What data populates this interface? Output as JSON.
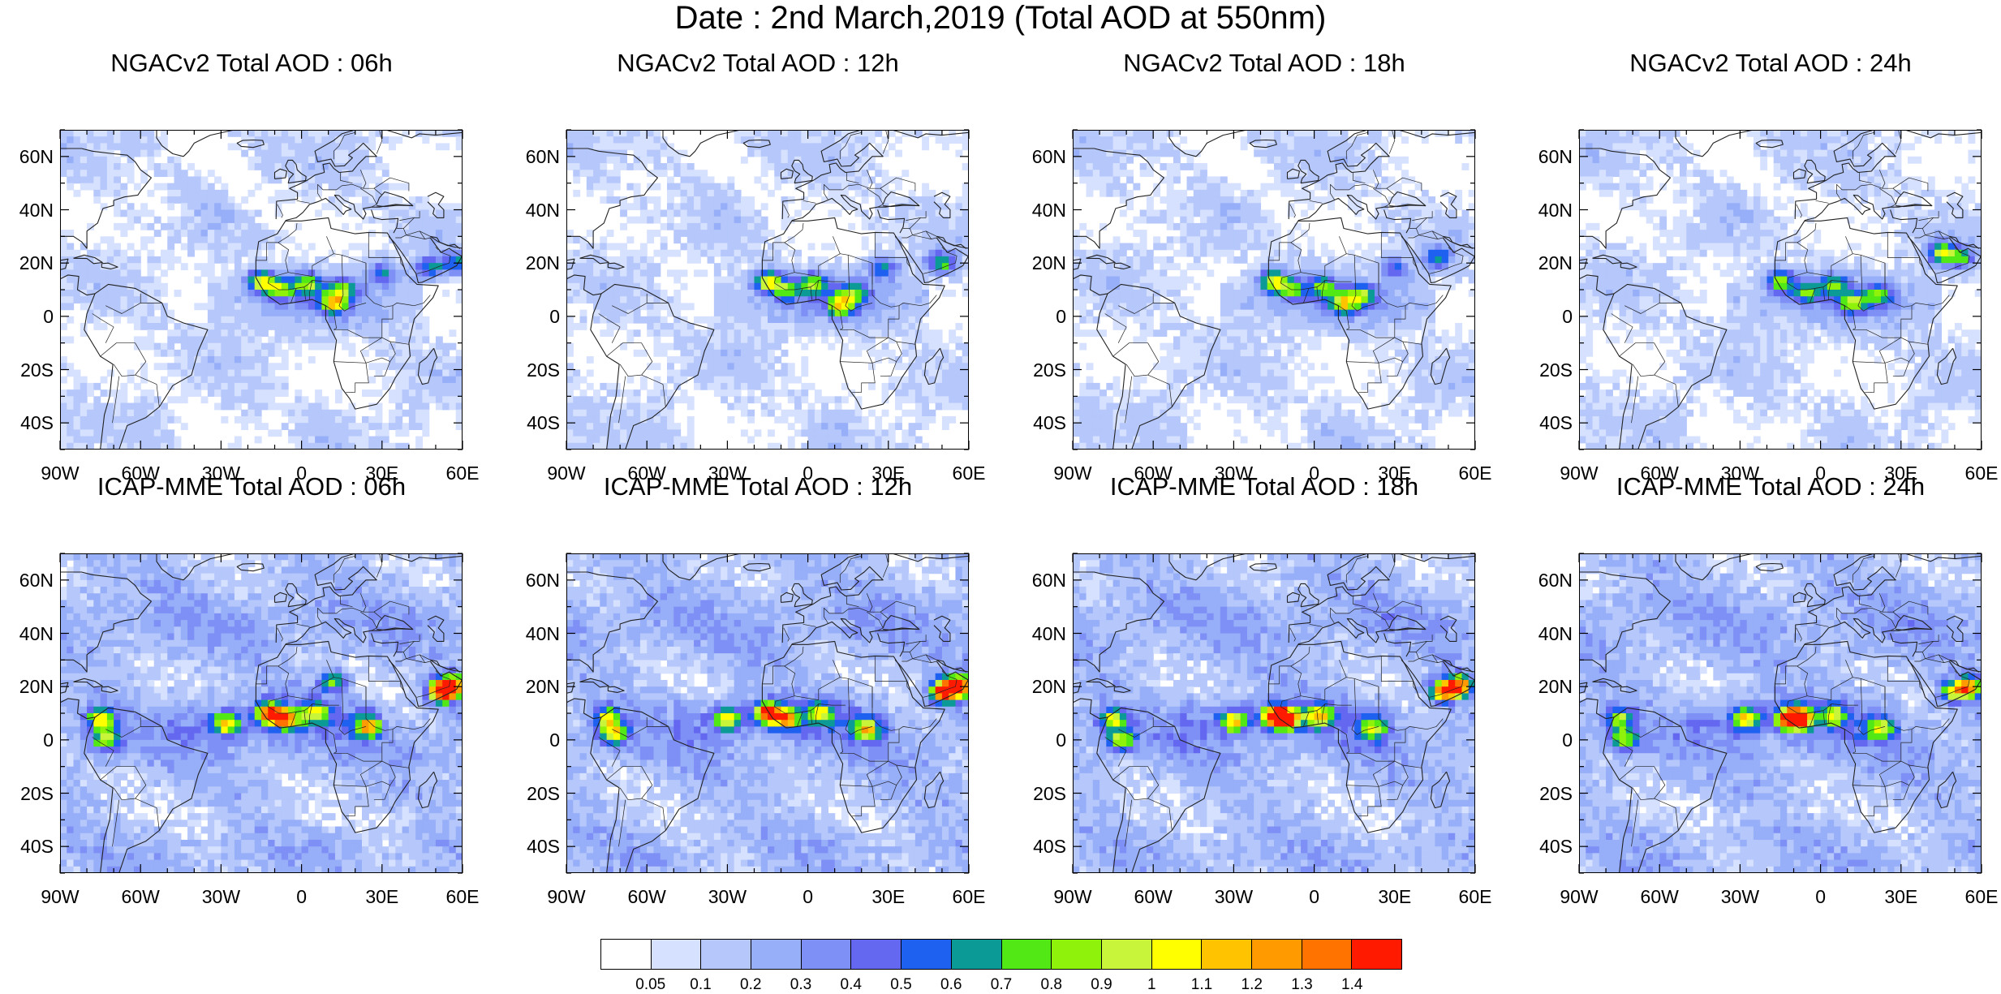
{
  "title": "Date : 2nd March,2019 (Total AOD at 550nm)",
  "panels": [
    {
      "title": "NGACv2 Total AOD : 06h",
      "model": "NGACv2",
      "hour": "06h",
      "hotspots": [
        [
          -15,
          13,
          0.9
        ],
        [
          -8,
          10,
          0.7
        ],
        [
          2,
          12,
          0.7
        ],
        [
          12,
          5,
          0.9
        ],
        [
          16,
          10,
          0.6
        ],
        [
          30,
          16,
          0.5
        ],
        [
          48,
          18,
          0.6
        ],
        [
          58,
          20,
          0.6
        ]
      ]
    },
    {
      "title": "NGACv2 Total AOD : 12h",
      "model": "NGACv2",
      "hour": "12h",
      "hotspots": [
        [
          -15,
          13,
          0.9
        ],
        [
          -8,
          10,
          0.6
        ],
        [
          2,
          12,
          0.7
        ],
        [
          12,
          4,
          0.8
        ],
        [
          17,
          9,
          0.6
        ],
        [
          28,
          18,
          0.6
        ],
        [
          50,
          20,
          0.7
        ]
      ]
    },
    {
      "title": "NGACv2 Total AOD : 18h",
      "model": "NGACv2",
      "hour": "18h",
      "hotspots": [
        [
          -15,
          13,
          0.9
        ],
        [
          -8,
          10,
          0.6
        ],
        [
          3,
          11,
          0.6
        ],
        [
          11,
          5,
          0.8
        ],
        [
          18,
          8,
          0.6
        ],
        [
          30,
          18,
          0.5
        ],
        [
          46,
          22,
          0.6
        ]
      ]
    },
    {
      "title": "NGACv2 Total AOD : 24h",
      "model": "NGACv2",
      "hour": "24h",
      "hotspots": [
        [
          -15,
          13,
          0.8
        ],
        [
          -5,
          9,
          0.6
        ],
        [
          5,
          12,
          0.6
        ],
        [
          12,
          5,
          0.7
        ],
        [
          22,
          8,
          0.6
        ],
        [
          45,
          24,
          0.8
        ],
        [
          52,
          22,
          0.6
        ]
      ]
    },
    {
      "title": "ICAP-MME Total AOD : 06h",
      "model": "ICAP-MME",
      "hour": "06h",
      "hotspots": [
        [
          -75,
          8,
          0.9
        ],
        [
          -73,
          0,
          0.8
        ],
        [
          -28,
          6,
          0.9
        ],
        [
          -12,
          10,
          1.2
        ],
        [
          -6,
          8,
          1.0
        ],
        [
          5,
          10,
          0.7
        ],
        [
          12,
          22,
          0.7
        ],
        [
          25,
          5,
          0.9
        ],
        [
          52,
          18,
          1.3
        ],
        [
          56,
          20,
          1.4
        ]
      ]
    },
    {
      "title": "ICAP-MME Total AOD : 12h",
      "model": "ICAP-MME",
      "hour": "12h",
      "hotspots": [
        [
          -75,
          8,
          0.8
        ],
        [
          -72,
          2,
          0.8
        ],
        [
          -30,
          8,
          0.9
        ],
        [
          -15,
          10,
          1.2
        ],
        [
          -8,
          8,
          1.0
        ],
        [
          5,
          10,
          0.7
        ],
        [
          22,
          4,
          0.8
        ],
        [
          50,
          18,
          1.3
        ],
        [
          56,
          20,
          1.4
        ]
      ]
    },
    {
      "title": "ICAP-MME Total AOD : 18h",
      "model": "ICAP-MME",
      "hour": "18h",
      "hotspots": [
        [
          -75,
          8,
          0.8
        ],
        [
          -72,
          0,
          0.7
        ],
        [
          -30,
          7,
          0.9
        ],
        [
          -15,
          9,
          1.1
        ],
        [
          -10,
          8,
          1.3
        ],
        [
          2,
          9,
          0.8
        ],
        [
          22,
          4,
          0.7
        ],
        [
          48,
          18,
          1.1
        ],
        [
          54,
          20,
          1.2
        ]
      ]
    },
    {
      "title": "ICAP-MME Total AOD : 24h",
      "model": "ICAP-MME",
      "hour": "24h",
      "hotspots": [
        [
          -75,
          8,
          0.7
        ],
        [
          -73,
          0,
          0.7
        ],
        [
          -28,
          8,
          0.9
        ],
        [
          -12,
          8,
          1.1
        ],
        [
          -8,
          8,
          1.3
        ],
        [
          5,
          9,
          0.7
        ],
        [
          22,
          4,
          0.7
        ],
        [
          50,
          18,
          0.9
        ],
        [
          56,
          20,
          0.9
        ]
      ]
    }
  ],
  "lat_ticks": [
    "60N",
    "40N",
    "20N",
    "0",
    "20S",
    "40S"
  ],
  "lon_ticks": [
    "90W",
    "60W",
    "30W",
    "0",
    "30E",
    "60E"
  ],
  "colorbar": {
    "labels": [
      "0.05",
      "0.1",
      "0.2",
      "0.3",
      "0.4",
      "0.5",
      "0.6",
      "0.7",
      "0.8",
      "0.9",
      "1",
      "1.1",
      "1.2",
      "1.3",
      "1.4"
    ],
    "colors": [
      "#ffffff",
      "#d6e0ff",
      "#b5c7fb",
      "#97aef8",
      "#7e8ff5",
      "#6467f0",
      "#1e60f0",
      "#0c9a96",
      "#52e815",
      "#8ff20a",
      "#c8f53a",
      "#ffff00",
      "#ffc300",
      "#ff9a00",
      "#ff7300",
      "#ff1a00"
    ]
  },
  "chart_data": {
    "type": "heatmap",
    "title": "Date : 2nd March,2019 (Total AOD at 550nm)",
    "extent": {
      "lon": [
        -90,
        60
      ],
      "lat": [
        -50,
        70
      ]
    },
    "variable": "Total AOD at 550nm",
    "levels": [
      0.05,
      0.1,
      0.2,
      0.3,
      0.4,
      0.5,
      0.6,
      0.7,
      0.8,
      0.9,
      1,
      1.1,
      1.2,
      1.3,
      1.4
    ]
  }
}
